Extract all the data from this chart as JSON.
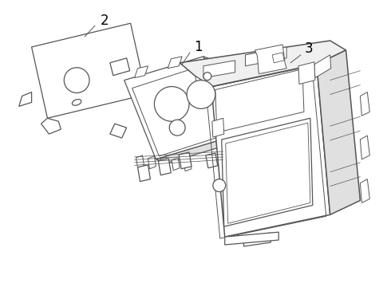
{
  "background_color": "#ffffff",
  "line_color": "#555555",
  "label_color": "#000000",
  "lw": 0.9,
  "figsize": [
    4.9,
    3.6
  ],
  "dpi": 100,
  "labels": {
    "2": [
      0.27,
      0.87
    ],
    "1": [
      0.49,
      0.67
    ],
    "3": [
      0.79,
      0.57
    ]
  },
  "arrow_ends": {
    "2": [
      0.24,
      0.84
    ],
    "1": [
      0.44,
      0.65
    ],
    "3": [
      0.74,
      0.55
    ]
  }
}
